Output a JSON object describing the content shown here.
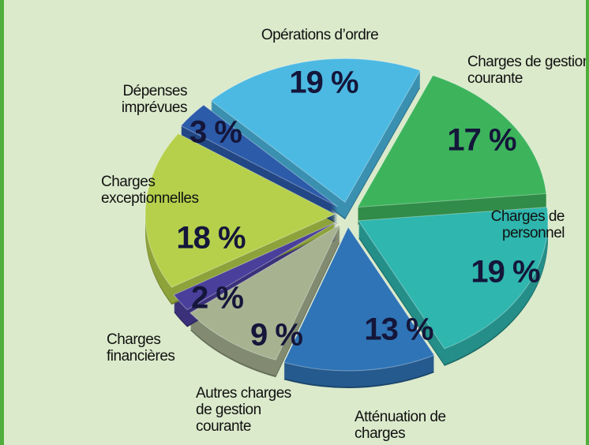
{
  "chart_data": {
    "type": "pie",
    "categories": [
      "Opérations d’ordre",
      "Charges de gestion courante",
      "Charges de personnel",
      "Atténuation de charges",
      "Autres charges de gestion courante",
      "Charges financières",
      "Charges exceptionnelles",
      "Dépenses imprévues"
    ],
    "values": [
      19,
      17,
      19,
      13,
      9,
      2,
      18,
      3
    ],
    "value_labels": [
      "19 %",
      "17 %",
      "19 %",
      "13 %",
      "9 %",
      "2 %",
      "18 %",
      "3 %"
    ],
    "colors": [
      "#4cb9e2",
      "#3db45c",
      "#2fb6ae",
      "#2f74b6",
      "#a7b291",
      "#4b3f9c",
      "#b6d04c",
      "#2c5ba9"
    ]
  }
}
